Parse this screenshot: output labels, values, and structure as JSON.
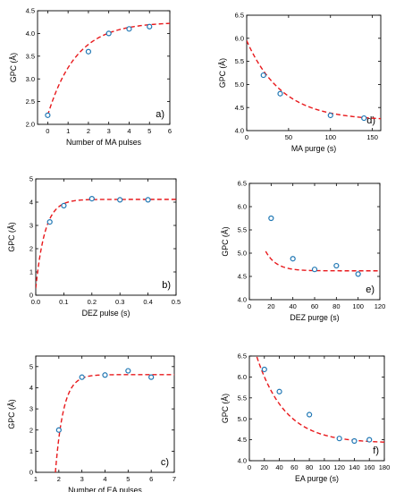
{
  "chart_data": [
    {
      "id": "a",
      "type": "scatter",
      "panel_label": "a)",
      "xlabel": "Number of MA pulses",
      "ylabel": "GPC (Å)",
      "xlim": [
        -0.5,
        6
      ],
      "ylim": [
        2.0,
        4.5
      ],
      "xticks": [
        0,
        1,
        2,
        3,
        4,
        5,
        6
      ],
      "yticks": [
        2.0,
        2.5,
        3.0,
        3.5,
        4.0,
        4.5
      ],
      "xtick_decimals": 0,
      "ytick_decimals": 1,
      "series": [
        {
          "x": [
            0,
            2,
            3,
            4,
            5
          ],
          "y": [
            2.2,
            3.6,
            4.0,
            4.1,
            4.15
          ]
        }
      ],
      "fit": {
        "model": "rise",
        "y0": 2.2,
        "yinf": 4.25,
        "tau": 1.4,
        "x_start": 0,
        "x_end": 6
      }
    },
    {
      "id": "d",
      "type": "scatter",
      "panel_label": "d)",
      "xlabel": "MA purge (s)",
      "ylabel": "GPC (Å)",
      "xlim": [
        0,
        160
      ],
      "ylim": [
        4.0,
        6.5
      ],
      "xticks": [
        0,
        50,
        100,
        150
      ],
      "yticks": [
        4.0,
        4.5,
        5.0,
        5.5,
        6.0,
        6.5
      ],
      "xtick_decimals": 0,
      "ytick_decimals": 1,
      "series": [
        {
          "x": [
            20,
            40,
            100,
            140
          ],
          "y": [
            5.2,
            4.8,
            4.33,
            4.27
          ]
        }
      ],
      "fit": {
        "model": "decay",
        "y0": 5.95,
        "yinf": 4.22,
        "tau": 42,
        "x_start": 0,
        "x_end": 160
      }
    },
    {
      "id": "b",
      "type": "scatter",
      "panel_label": "b)",
      "xlabel": "DEZ pulse (s)",
      "ylabel": "GPC (Å)",
      "xlim": [
        0,
        0.5
      ],
      "ylim": [
        0,
        5
      ],
      "xticks": [
        0,
        0.1,
        0.2,
        0.3,
        0.4,
        0.5
      ],
      "yticks": [
        0,
        1,
        2,
        3,
        4,
        5
      ],
      "xtick_decimals": 1,
      "ytick_decimals": 0,
      "series": [
        {
          "x": [
            0.05,
            0.1,
            0.2,
            0.3,
            0.4
          ],
          "y": [
            3.15,
            3.85,
            4.15,
            4.1,
            4.1
          ]
        }
      ],
      "fit": {
        "model": "rise",
        "y0": 0.3,
        "yinf": 4.12,
        "tau": 0.033,
        "x_start": 0,
        "x_end": 0.5
      }
    },
    {
      "id": "e",
      "type": "scatter",
      "panel_label": "e)",
      "xlabel": "DEZ purge (s)",
      "ylabel": "GPC (Å)",
      "xlim": [
        0,
        120
      ],
      "ylim": [
        4.0,
        6.5
      ],
      "xticks": [
        0,
        20,
        40,
        60,
        80,
        100,
        120
      ],
      "yticks": [
        4.0,
        4.5,
        5.0,
        5.5,
        6.0,
        6.5
      ],
      "xtick_decimals": 0,
      "ytick_decimals": 1,
      "series": [
        {
          "x": [
            20,
            40,
            60,
            80,
            100
          ],
          "y": [
            5.75,
            4.88,
            4.65,
            4.73,
            4.55
          ]
        }
      ],
      "fit": {
        "model": "decay",
        "y0": 6.5,
        "yinf": 4.62,
        "tau": 10,
        "x_start": 15,
        "x_end": 120
      }
    },
    {
      "id": "c",
      "type": "scatter",
      "panel_label": "c)",
      "xlabel": "Number of EA pulses",
      "ylabel": "GPC (Å)",
      "xlim": [
        1,
        7
      ],
      "ylim": [
        0,
        5.5
      ],
      "xticks": [
        1,
        2,
        3,
        4,
        5,
        6,
        7
      ],
      "yticks": [
        0,
        1,
        2,
        3,
        4,
        5
      ],
      "xtick_decimals": 0,
      "ytick_decimals": 0,
      "series": [
        {
          "x": [
            2,
            3,
            4,
            5,
            6
          ],
          "y": [
            2.0,
            4.5,
            4.6,
            4.8,
            4.5
          ]
        }
      ],
      "fit": {
        "model": "rise",
        "y0": 0,
        "yinf": 4.62,
        "tau": 0.35,
        "x_start": 1.85,
        "x_end": 7,
        "x_offset": 1.85
      }
    },
    {
      "id": "f",
      "type": "scatter",
      "panel_label": "f)",
      "xlabel": "EA purge (s)",
      "ylabel": "GPC (Å)",
      "xlim": [
        0,
        180
      ],
      "ylim": [
        4.0,
        6.5
      ],
      "xticks": [
        0,
        20,
        40,
        60,
        80,
        100,
        120,
        140,
        160,
        180
      ],
      "yticks": [
        4.0,
        4.5,
        5.0,
        5.5,
        6.0,
        6.5
      ],
      "xtick_decimals": 0,
      "ytick_decimals": 1,
      "series": [
        {
          "x": [
            20,
            40,
            80,
            120,
            140,
            160
          ],
          "y": [
            6.18,
            5.65,
            5.1,
            4.53,
            4.47,
            4.5
          ]
        }
      ],
      "fit": {
        "model": "decay",
        "y0": 7.1,
        "yinf": 4.42,
        "tau": 38,
        "x_start": 10,
        "x_end": 180
      }
    }
  ]
}
